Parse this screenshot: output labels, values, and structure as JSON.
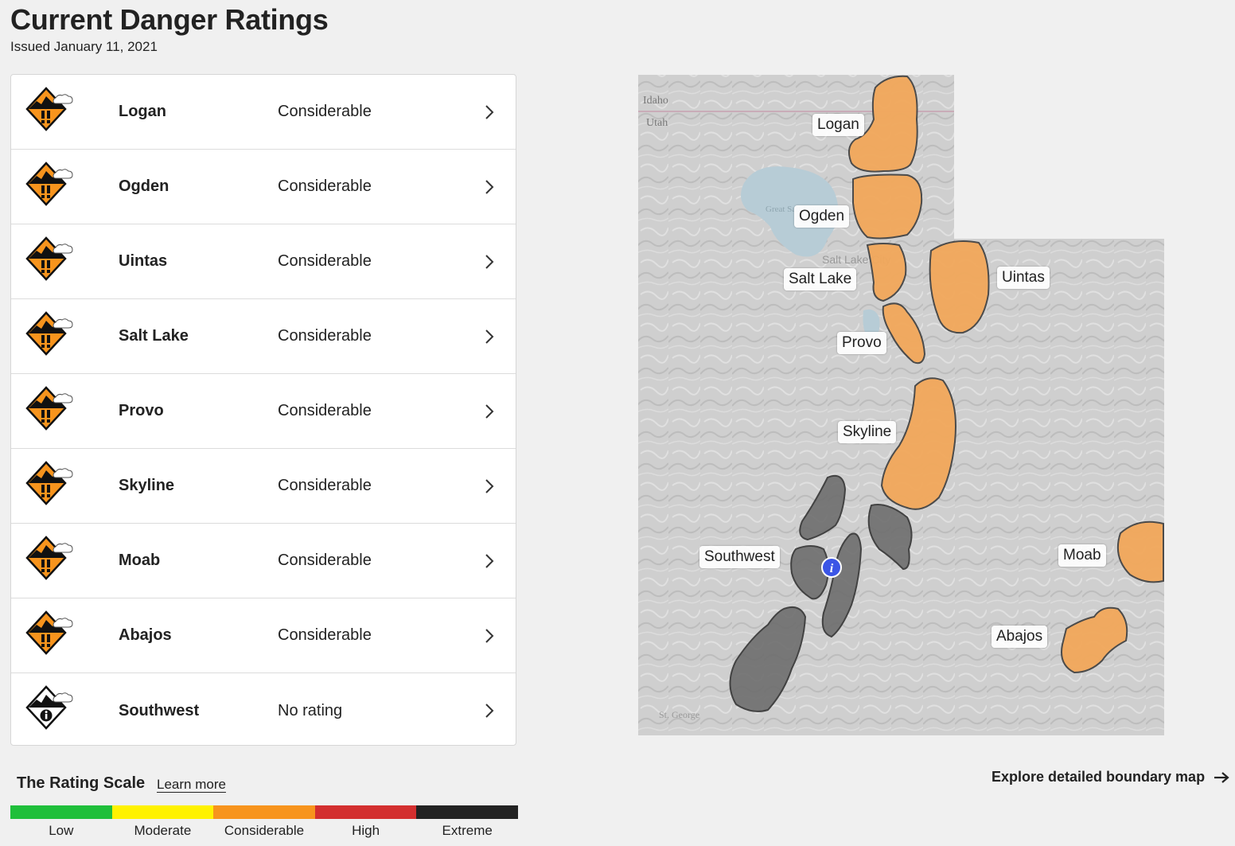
{
  "header": {
    "title": "Current Danger Ratings",
    "issued": "Issued January 11, 2021"
  },
  "regions": [
    {
      "name": "Logan",
      "rating": "Considerable",
      "icon": "considerable-danger-icon"
    },
    {
      "name": "Ogden",
      "rating": "Considerable",
      "icon": "considerable-danger-icon"
    },
    {
      "name": "Uintas",
      "rating": "Considerable",
      "icon": "considerable-danger-icon"
    },
    {
      "name": "Salt Lake",
      "rating": "Considerable",
      "icon": "considerable-danger-icon"
    },
    {
      "name": "Provo",
      "rating": "Considerable",
      "icon": "considerable-danger-icon"
    },
    {
      "name": "Skyline",
      "rating": "Considerable",
      "icon": "considerable-danger-icon"
    },
    {
      "name": "Moab",
      "rating": "Considerable",
      "icon": "considerable-danger-icon"
    },
    {
      "name": "Abajos",
      "rating": "Considerable",
      "icon": "considerable-danger-icon"
    },
    {
      "name": "Southwest",
      "rating": "No rating",
      "icon": "no-rating-info-icon"
    }
  ],
  "scale": {
    "title": "The Rating Scale",
    "learn_more": "Learn more",
    "levels": [
      {
        "label": "Low",
        "color": "#1fbf3a"
      },
      {
        "label": "Moderate",
        "color": "#fff200"
      },
      {
        "label": "Considerable",
        "color": "#f7941d"
      },
      {
        "label": "High",
        "color": "#d32f2f"
      },
      {
        "label": "Extreme",
        "color": "#222222"
      }
    ]
  },
  "map": {
    "state_labels": [
      "Idaho",
      "Utah"
    ],
    "city_labels": [
      "St. George",
      "Salt Lake City",
      "Great Salt Lake"
    ],
    "region_labels": [
      "Logan",
      "Ogden",
      "Salt Lake",
      "Uintas",
      "Provo",
      "Skyline",
      "Southwest",
      "Moab",
      "Abajos"
    ],
    "considerable_color": "#f2a85b",
    "no_rating_color": "#6e6e6e"
  },
  "footer": {
    "explore_link": "Explore detailed boundary map"
  }
}
